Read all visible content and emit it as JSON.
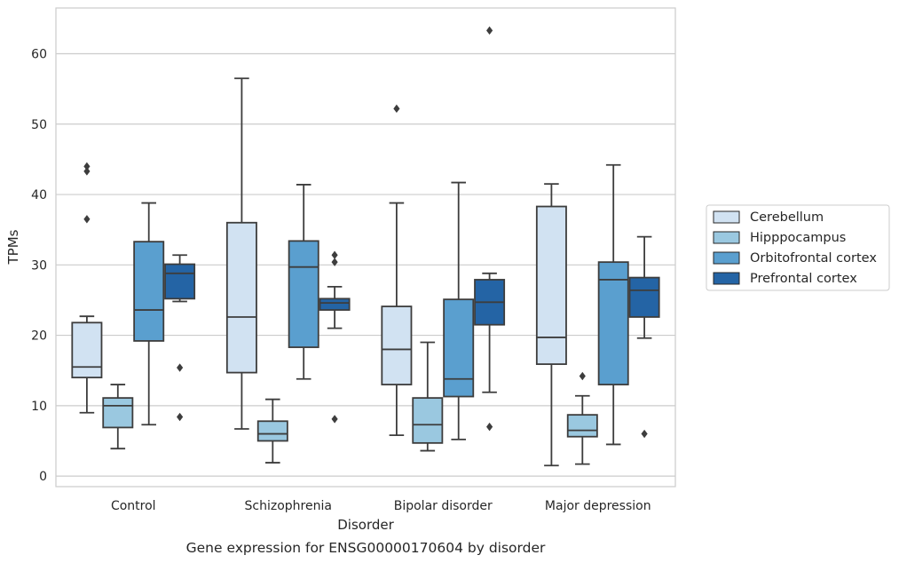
{
  "chart_data": {
    "type": "box",
    "caption": "Gene expression for ENSG00000170604 by disorder",
    "xlabel": "Disorder",
    "ylabel": "TPMs",
    "ylim": [
      -1.5,
      66.5
    ],
    "yticks": [
      0,
      10,
      20,
      30,
      40,
      50,
      60
    ],
    "grid": "horizontal",
    "legend_position": "right",
    "categories": [
      "Control",
      "Schizophrenia",
      "Bipolar disorder",
      "Major depression"
    ],
    "series": [
      {
        "name": "Cerebellum",
        "color": "#d1e2f2",
        "boxes": [
          {
            "whislo": 9.0,
            "q1": 14.0,
            "med": 15.5,
            "q3": 21.8,
            "whishi": 22.7,
            "fliers": [
              36.5,
              43.3,
              44.0
            ]
          },
          {
            "whislo": 6.7,
            "q1": 14.7,
            "med": 22.6,
            "q3": 36.0,
            "whishi": 56.5,
            "fliers": []
          },
          {
            "whislo": 5.8,
            "q1": 13.0,
            "med": 18.0,
            "q3": 24.1,
            "whishi": 38.8,
            "fliers": [
              52.2
            ]
          },
          {
            "whislo": 1.5,
            "q1": 15.9,
            "med": 19.7,
            "q3": 38.3,
            "whishi": 41.5,
            "fliers": []
          }
        ]
      },
      {
        "name": "Hipppocampus",
        "color": "#9ac8e0",
        "boxes": [
          {
            "whislo": 3.9,
            "q1": 6.9,
            "med": 10.0,
            "q3": 11.1,
            "whishi": 13.0,
            "fliers": []
          },
          {
            "whislo": 1.9,
            "q1": 5.0,
            "med": 6.0,
            "q3": 7.8,
            "whishi": 10.9,
            "fliers": []
          },
          {
            "whislo": 3.6,
            "q1": 4.7,
            "med": 7.3,
            "q3": 11.1,
            "whishi": 19.0,
            "fliers": []
          },
          {
            "whislo": 1.7,
            "q1": 5.6,
            "med": 6.5,
            "q3": 8.7,
            "whishi": 11.4,
            "fliers": [
              14.2
            ]
          }
        ]
      },
      {
        "name": "Orbitofrontal cortex",
        "color": "#5a9fcf",
        "boxes": [
          {
            "whislo": 7.3,
            "q1": 19.2,
            "med": 23.6,
            "q3": 33.3,
            "whishi": 38.8,
            "fliers": []
          },
          {
            "whislo": 13.8,
            "q1": 18.3,
            "med": 29.7,
            "q3": 33.4,
            "whishi": 41.4,
            "fliers": []
          },
          {
            "whislo": 5.2,
            "q1": 11.3,
            "med": 13.8,
            "q3": 25.1,
            "whishi": 41.7,
            "fliers": []
          },
          {
            "whislo": 4.5,
            "q1": 13.0,
            "med": 27.9,
            "q3": 30.4,
            "whishi": 44.2,
            "fliers": []
          }
        ]
      },
      {
        "name": "Prefrontal cortex",
        "color": "#2464a5",
        "boxes": [
          {
            "whislo": 24.8,
            "q1": 25.2,
            "med": 28.8,
            "q3": 30.1,
            "whishi": 31.4,
            "fliers": [
              15.4,
              8.4
            ]
          },
          {
            "whislo": 21.0,
            "q1": 23.6,
            "med": 24.6,
            "q3": 25.2,
            "whishi": 26.9,
            "fliers": [
              31.4,
              30.4,
              8.1
            ]
          },
          {
            "whislo": 11.9,
            "q1": 21.5,
            "med": 24.7,
            "q3": 27.9,
            "whishi": 28.8,
            "fliers": [
              7.0,
              63.3
            ]
          },
          {
            "whislo": 19.6,
            "q1": 22.6,
            "med": 26.4,
            "q3": 28.2,
            "whishi": 34.0,
            "fliers": [
              6.0
            ]
          }
        ]
      }
    ]
  }
}
